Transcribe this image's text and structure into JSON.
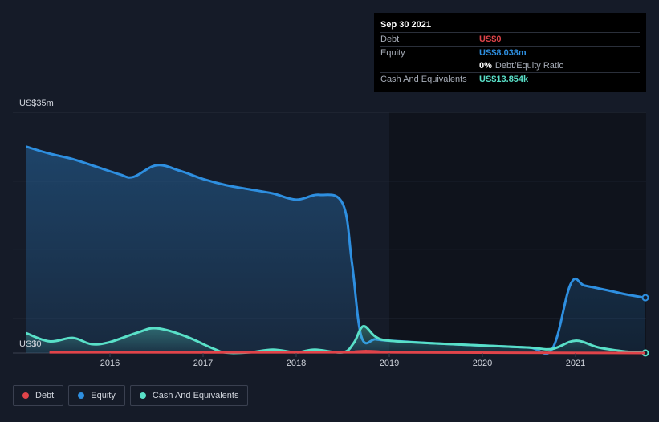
{
  "chart_data": {
    "type": "area",
    "title": "",
    "y_axis": {
      "top_label": "US$35m",
      "bottom_label": "US$0",
      "ylim": [
        0,
        35
      ]
    },
    "x_ticks": [
      "2016",
      "2017",
      "2018",
      "2019",
      "2020",
      "2021"
    ],
    "x_range": [
      2015.1,
      2021.75
    ],
    "series": [
      {
        "name": "Equity",
        "color": "#2e8fe0",
        "points": [
          [
            2015.1,
            30.0
          ],
          [
            2015.35,
            29.0
          ],
          [
            2015.6,
            28.2
          ],
          [
            2015.85,
            27.1
          ],
          [
            2016.1,
            26.0
          ],
          [
            2016.25,
            25.6
          ],
          [
            2016.5,
            27.3
          ],
          [
            2016.75,
            26.5
          ],
          [
            2017.0,
            25.3
          ],
          [
            2017.25,
            24.4
          ],
          [
            2017.5,
            23.8
          ],
          [
            2017.75,
            23.2
          ],
          [
            2018.0,
            22.3
          ],
          [
            2018.25,
            23.0
          ],
          [
            2018.5,
            21.7
          ],
          [
            2018.6,
            13.0
          ],
          [
            2018.7,
            2.4
          ],
          [
            2018.85,
            2.0
          ],
          [
            2019.0,
            1.8
          ],
          [
            2019.5,
            1.4
          ],
          [
            2020.0,
            1.1
          ],
          [
            2020.5,
            0.8
          ],
          [
            2020.75,
            0.6
          ],
          [
            2020.95,
            10.1
          ],
          [
            2021.1,
            9.8
          ],
          [
            2021.35,
            9.1
          ],
          [
            2021.55,
            8.5
          ],
          [
            2021.75,
            8.038
          ]
        ]
      },
      {
        "name": "Cash And Equivalents",
        "color": "#59e0c8",
        "points": [
          [
            2015.1,
            2.9
          ],
          [
            2015.35,
            1.7
          ],
          [
            2015.6,
            2.2
          ],
          [
            2015.8,
            1.3
          ],
          [
            2016.0,
            1.6
          ],
          [
            2016.3,
            3.0
          ],
          [
            2016.5,
            3.6
          ],
          [
            2016.8,
            2.5
          ],
          [
            2017.1,
            0.7
          ],
          [
            2017.25,
            0.05
          ],
          [
            2017.5,
            0.1
          ],
          [
            2017.75,
            0.5
          ],
          [
            2018.0,
            0.1
          ],
          [
            2018.2,
            0.5
          ],
          [
            2018.5,
            0.1
          ],
          [
            2018.62,
            1.5
          ],
          [
            2018.72,
            3.9
          ],
          [
            2018.85,
            2.4
          ],
          [
            2019.0,
            1.8
          ],
          [
            2019.5,
            1.4
          ],
          [
            2020.0,
            1.1
          ],
          [
            2020.5,
            0.8
          ],
          [
            2020.75,
            0.6
          ],
          [
            2021.0,
            1.8
          ],
          [
            2021.25,
            0.8
          ],
          [
            2021.55,
            0.2
          ],
          [
            2021.75,
            0.013854
          ]
        ]
      },
      {
        "name": "Debt",
        "color": "#e0444a",
        "points": [
          [
            2015.35,
            0.1
          ],
          [
            2018.6,
            0.1
          ],
          [
            2018.75,
            0.3
          ],
          [
            2018.9,
            0.1
          ],
          [
            2021.75,
            0.0
          ]
        ]
      }
    ]
  },
  "tooltip": {
    "date": "Sep 30 2021",
    "debt_label": "Debt",
    "debt_value": "US$0",
    "equity_label": "Equity",
    "equity_value": "US$8.038m",
    "ratio_value": "0%",
    "ratio_label": "Debt/Equity Ratio",
    "cash_label": "Cash And Equivalents",
    "cash_value": "US$13.854k"
  },
  "legend": [
    {
      "label": "Debt",
      "color": "#e0444a"
    },
    {
      "label": "Equity",
      "color": "#2e8fe0"
    },
    {
      "label": "Cash And Equivalents",
      "color": "#59e0c8"
    }
  ]
}
